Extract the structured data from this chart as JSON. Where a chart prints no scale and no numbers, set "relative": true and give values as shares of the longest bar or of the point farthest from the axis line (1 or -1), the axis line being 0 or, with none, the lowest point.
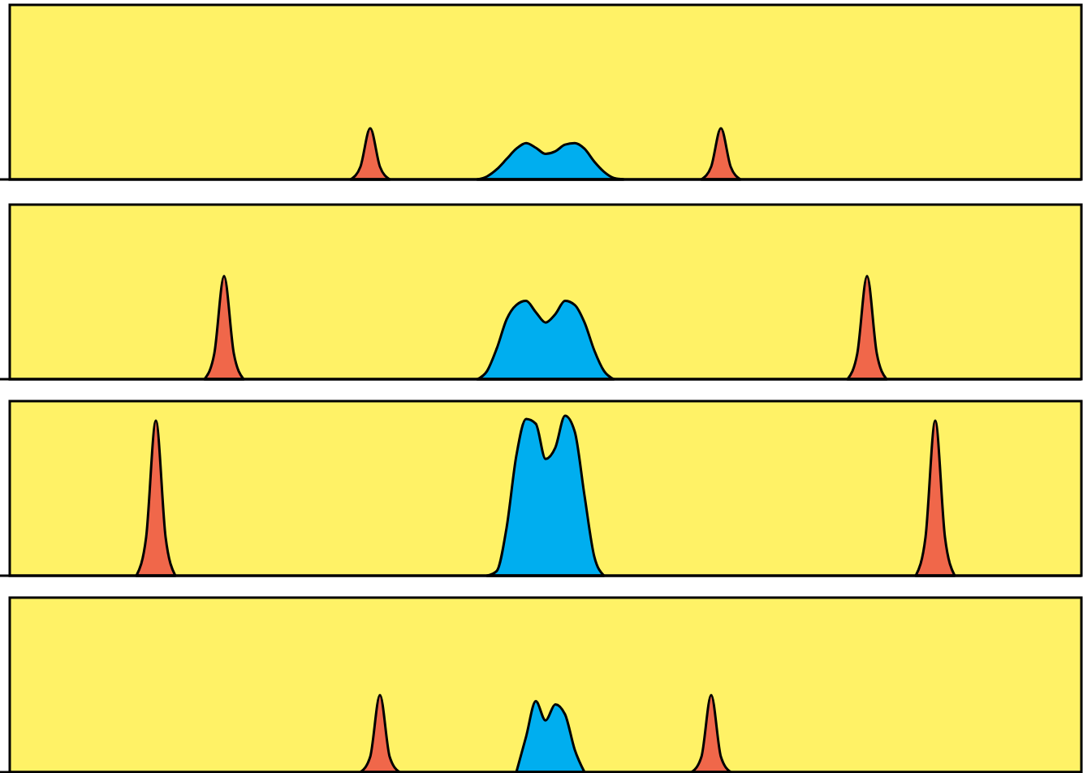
{
  "chart_data": [
    {
      "type": "area",
      "relative": true,
      "categories": [
        null,
        null,
        null,
        null,
        null,
        null,
        null,
        null,
        null,
        null,
        null,
        null,
        null,
        null,
        null,
        null,
        null,
        null,
        null,
        null,
        null,
        null,
        null,
        null,
        null,
        null,
        null,
        null,
        null,
        null,
        null,
        null,
        null,
        null,
        null,
        null,
        null,
        null,
        null,
        null,
        null,
        null,
        null,
        null,
        null,
        null,
        null,
        null,
        null,
        null,
        null,
        null,
        null,
        null,
        null,
        null,
        null,
        null,
        null,
        null,
        null,
        null,
        null,
        null,
        null,
        null,
        null,
        null,
        null,
        null,
        null,
        null,
        null,
        null,
        null,
        null,
        null,
        null,
        null,
        null,
        null,
        null,
        null,
        null,
        null,
        null,
        null,
        null,
        null,
        null,
        null,
        null,
        null,
        null,
        null,
        null,
        null,
        null,
        null,
        null,
        null,
        null,
        null,
        null,
        null,
        null,
        null,
        null,
        null,
        null,
        null
      ],
      "series": [
        {
          "color": "#f0674a",
          "values": [
            null,
            null,
            null,
            null,
            null,
            null,
            null,
            null,
            null,
            null,
            null,
            null,
            null,
            null,
            null,
            null,
            null,
            null,
            null,
            null,
            null,
            null,
            null,
            null,
            null,
            null,
            null,
            null,
            null,
            null,
            null,
            null,
            null,
            null,
            null,
            0,
            0.25,
            1,
            0.25,
            0,
            null,
            null,
            null,
            null,
            null,
            null,
            null,
            null,
            null,
            null,
            null,
            null,
            null,
            null,
            null,
            null,
            null,
            null,
            null,
            null,
            null,
            null,
            null,
            null,
            null,
            null,
            null,
            null,
            null,
            null,
            null,
            0,
            0.25,
            1,
            0.25,
            0,
            null,
            null,
            null,
            null,
            null,
            null,
            null,
            null,
            null,
            null,
            null,
            null,
            null,
            null,
            null,
            null,
            null,
            null,
            null,
            null,
            null,
            null,
            null,
            null,
            null,
            null,
            null,
            null,
            null,
            null,
            null,
            null,
            null,
            null,
            null
          ]
        },
        {
          "color": "#00aeef",
          "values": [
            null,
            null,
            null,
            null,
            null,
            null,
            null,
            null,
            null,
            null,
            null,
            null,
            null,
            null,
            null,
            null,
            null,
            null,
            null,
            null,
            null,
            null,
            null,
            null,
            null,
            null,
            null,
            null,
            null,
            null,
            null,
            null,
            null,
            null,
            null,
            null,
            null,
            null,
            null,
            null,
            null,
            null,
            null,
            null,
            null,
            null,
            null,
            null,
            0,
            0.06,
            0.2,
            0.4,
            0.6,
            0.71,
            0.62,
            0.5,
            0.55,
            0.68,
            0.71,
            0.6,
            0.35,
            0.15,
            0.03,
            0,
            null,
            null,
            null,
            null,
            null,
            null,
            null,
            null,
            null,
            null,
            null,
            null,
            null,
            null,
            null,
            null,
            null,
            null,
            null,
            null,
            null,
            null,
            null,
            null,
            null,
            null,
            null,
            null,
            null,
            null,
            null,
            null,
            null,
            null,
            null,
            null,
            null,
            null,
            null,
            null,
            null,
            null,
            null,
            null,
            null,
            null,
            null
          ]
        }
      ]
    },
    {
      "type": "area",
      "relative": true,
      "categories": [
        null,
        null,
        null,
        null,
        null,
        null,
        null,
        null,
        null,
        null,
        null,
        null,
        null,
        null,
        null,
        null,
        null,
        null,
        null,
        null,
        null,
        null,
        null,
        null,
        null,
        null,
        null,
        null,
        null,
        null,
        null,
        null,
        null,
        null,
        null,
        null,
        null,
        null,
        null,
        null,
        null,
        null,
        null,
        null,
        null,
        null,
        null,
        null,
        null,
        null,
        null,
        null,
        null,
        null,
        null,
        null,
        null,
        null,
        null,
        null,
        null,
        null,
        null,
        null,
        null,
        null,
        null,
        null,
        null,
        null,
        null,
        null,
        null,
        null,
        null,
        null,
        null,
        null,
        null,
        null,
        null,
        null,
        null,
        null,
        null,
        null,
        null,
        null,
        null,
        null,
        null,
        null,
        null,
        null,
        null,
        null,
        null,
        null,
        null,
        null,
        null,
        null,
        null,
        null,
        null,
        null,
        null,
        null,
        null,
        null,
        null
      ],
      "series": [
        {
          "color": "#f0674a",
          "values": [
            null,
            null,
            null,
            null,
            null,
            null,
            null,
            null,
            null,
            null,
            null,
            null,
            null,
            null,
            null,
            null,
            null,
            null,
            null,
            null,
            0,
            0.25,
            1,
            0.25,
            0,
            null,
            null,
            null,
            null,
            null,
            null,
            null,
            null,
            null,
            null,
            null,
            null,
            null,
            null,
            null,
            null,
            null,
            null,
            null,
            null,
            null,
            null,
            null,
            null,
            null,
            null,
            null,
            null,
            null,
            null,
            null,
            null,
            null,
            null,
            null,
            null,
            null,
            null,
            null,
            null,
            null,
            null,
            null,
            null,
            null,
            null,
            null,
            null,
            null,
            null,
            null,
            null,
            null,
            null,
            null,
            null,
            null,
            null,
            null,
            null,
            null,
            0,
            0.25,
            1,
            0.25,
            0,
            null,
            null,
            null,
            null,
            null,
            null,
            null,
            null,
            null,
            null,
            null,
            null,
            null,
            null,
            null,
            null,
            null,
            null,
            null,
            null
          ]
        },
        {
          "color": "#00aeef",
          "values": [
            null,
            null,
            null,
            null,
            null,
            null,
            null,
            null,
            null,
            null,
            null,
            null,
            null,
            null,
            null,
            null,
            null,
            null,
            null,
            null,
            null,
            null,
            null,
            null,
            null,
            null,
            null,
            null,
            null,
            null,
            null,
            null,
            null,
            null,
            null,
            null,
            null,
            null,
            null,
            null,
            null,
            null,
            null,
            null,
            null,
            null,
            null,
            null,
            0,
            0.08,
            0.3,
            0.58,
            0.72,
            0.76,
            0.65,
            0.55,
            0.63,
            0.76,
            0.72,
            0.55,
            0.28,
            0.08,
            0,
            null,
            null,
            null,
            null,
            null,
            null,
            null,
            null,
            null,
            null,
            null,
            null,
            null,
            null,
            null,
            null,
            null,
            null,
            null,
            null,
            null,
            null,
            null,
            null,
            null,
            null,
            null,
            null,
            null,
            null,
            null,
            null,
            null,
            null,
            null,
            null,
            null,
            null,
            null,
            null,
            null,
            null,
            null,
            null,
            null,
            null,
            null,
            null
          ]
        }
      ]
    },
    {
      "type": "area",
      "relative": true,
      "categories": [
        null,
        null,
        null,
        null,
        null,
        null,
        null,
        null,
        null,
        null,
        null,
        null,
        null,
        null,
        null,
        null,
        null,
        null,
        null,
        null,
        null,
        null,
        null,
        null,
        null,
        null,
        null,
        null,
        null,
        null,
        null,
        null,
        null,
        null,
        null,
        null,
        null,
        null,
        null,
        null,
        null,
        null,
        null,
        null,
        null,
        null,
        null,
        null,
        null,
        null,
        null,
        null,
        null,
        null,
        null,
        null,
        null,
        null,
        null,
        null,
        null,
        null,
        null,
        null,
        null,
        null,
        null,
        null,
        null,
        null,
        null,
        null,
        null,
        null,
        null,
        null,
        null,
        null,
        null,
        null,
        null,
        null,
        null,
        null,
        null,
        null,
        null,
        null,
        null,
        null,
        null,
        null,
        null,
        null,
        null,
        null,
        null,
        null,
        null,
        null,
        null,
        null,
        null,
        null,
        null,
        null,
        null,
        null,
        null,
        null,
        null
      ],
      "series": [
        {
          "color": "#f0674a",
          "values": [
            null,
            null,
            null,
            null,
            null,
            null,
            null,
            null,
            null,
            null,
            null,
            null,
            null,
            0,
            0.24,
            0.97,
            0.24,
            0,
            null,
            null,
            null,
            null,
            null,
            null,
            null,
            null,
            null,
            null,
            null,
            null,
            null,
            null,
            null,
            null,
            null,
            null,
            null,
            null,
            null,
            null,
            null,
            null,
            null,
            null,
            null,
            null,
            null,
            null,
            null,
            null,
            null,
            null,
            null,
            null,
            null,
            null,
            null,
            null,
            null,
            null,
            null,
            null,
            null,
            null,
            null,
            null,
            null,
            null,
            null,
            null,
            null,
            null,
            null,
            null,
            null,
            null,
            null,
            null,
            null,
            null,
            null,
            null,
            null,
            null,
            null,
            null,
            null,
            null,
            null,
            null,
            null,
            null,
            null,
            0,
            0.24,
            0.97,
            0.24,
            0,
            null,
            null,
            null,
            null,
            null,
            null,
            null,
            null,
            null,
            null,
            null,
            null,
            null
          ]
        },
        {
          "color": "#00aeef",
          "values": [
            null,
            null,
            null,
            null,
            null,
            null,
            null,
            null,
            null,
            null,
            null,
            null,
            null,
            null,
            null,
            null,
            null,
            null,
            null,
            null,
            null,
            null,
            null,
            null,
            null,
            null,
            null,
            null,
            null,
            null,
            null,
            null,
            null,
            null,
            null,
            null,
            null,
            null,
            null,
            null,
            null,
            null,
            null,
            null,
            null,
            null,
            null,
            null,
            null,
            0,
            0.03,
            0.3,
            0.75,
            0.98,
            0.95,
            0.73,
            0.8,
            1,
            0.9,
            0.5,
            0.12,
            0,
            null,
            null,
            null,
            null,
            null,
            null,
            null,
            null,
            null,
            null,
            null,
            null,
            null,
            null,
            null,
            null,
            null,
            null,
            null,
            null,
            null,
            null,
            null,
            null,
            null,
            null,
            null,
            null,
            null,
            null,
            null,
            null,
            null,
            null,
            null,
            null,
            null,
            null,
            null,
            null,
            null,
            null,
            null,
            null,
            null,
            null,
            null,
            null,
            null
          ]
        }
      ]
    },
    {
      "type": "area",
      "relative": true,
      "categories": [
        null,
        null,
        null,
        null,
        null,
        null,
        null,
        null,
        null,
        null,
        null,
        null,
        null,
        null,
        null,
        null,
        null,
        null,
        null,
        null,
        null,
        null,
        null,
        null,
        null,
        null,
        null,
        null,
        null,
        null,
        null,
        null,
        null,
        null,
        null,
        null,
        null,
        null,
        null,
        null,
        null,
        null,
        null,
        null,
        null,
        null,
        null,
        null,
        null,
        null,
        null,
        null,
        null,
        null,
        null,
        null,
        null,
        null,
        null,
        null,
        null,
        null,
        null,
        null,
        null,
        null,
        null,
        null,
        null,
        null,
        null,
        null,
        null,
        null,
        null,
        null,
        null,
        null,
        null,
        null,
        null,
        null,
        null,
        null,
        null,
        null,
        null,
        null,
        null,
        null,
        null,
        null,
        null,
        null,
        null,
        null,
        null,
        null,
        null,
        null,
        null,
        null,
        null,
        null,
        null,
        null,
        null,
        null,
        null,
        null,
        null
      ],
      "series": [
        {
          "color": "#f0674a",
          "values": [
            null,
            null,
            null,
            null,
            null,
            null,
            null,
            null,
            null,
            null,
            null,
            null,
            null,
            null,
            null,
            null,
            null,
            null,
            null,
            null,
            null,
            null,
            null,
            null,
            null,
            null,
            null,
            null,
            null,
            null,
            null,
            null,
            null,
            null,
            null,
            null,
            0,
            0.2,
            1,
            0.2,
            0,
            null,
            null,
            null,
            null,
            null,
            null,
            null,
            null,
            null,
            null,
            null,
            null,
            null,
            null,
            null,
            null,
            null,
            null,
            null,
            null,
            null,
            null,
            null,
            null,
            null,
            null,
            null,
            null,
            null,
            0,
            0.2,
            1,
            0.2,
            0,
            null,
            null,
            null,
            null,
            null,
            null,
            null,
            null,
            null,
            null,
            null,
            null,
            null,
            null,
            null,
            null,
            null,
            null,
            null,
            null,
            null,
            null,
            null,
            null,
            null,
            null,
            null,
            null,
            null,
            null,
            null,
            null,
            null,
            null,
            null,
            null
          ]
        },
        {
          "color": "#00aeef",
          "values": [
            null,
            null,
            null,
            null,
            null,
            null,
            null,
            null,
            null,
            null,
            null,
            null,
            null,
            null,
            null,
            null,
            null,
            null,
            null,
            null,
            null,
            null,
            null,
            null,
            null,
            null,
            null,
            null,
            null,
            null,
            null,
            null,
            null,
            null,
            null,
            null,
            null,
            null,
            null,
            null,
            null,
            null,
            null,
            null,
            null,
            null,
            null,
            null,
            null,
            null,
            null,
            null,
            0,
            0.46,
            0.92,
            0.67,
            0.88,
            0.75,
            0.29,
            0,
            null,
            null,
            null,
            null,
            null,
            null,
            null,
            null,
            null,
            null,
            null,
            null,
            null,
            null,
            null,
            null,
            null,
            null,
            null,
            null,
            null,
            null,
            null,
            null,
            null,
            null,
            null,
            null,
            null,
            null,
            null,
            null,
            null,
            null,
            null,
            null,
            null,
            null,
            null,
            null,
            null,
            null,
            null,
            null,
            null,
            null,
            null,
            null,
            null,
            null,
            null
          ]
        }
      ]
    }
  ]
}
